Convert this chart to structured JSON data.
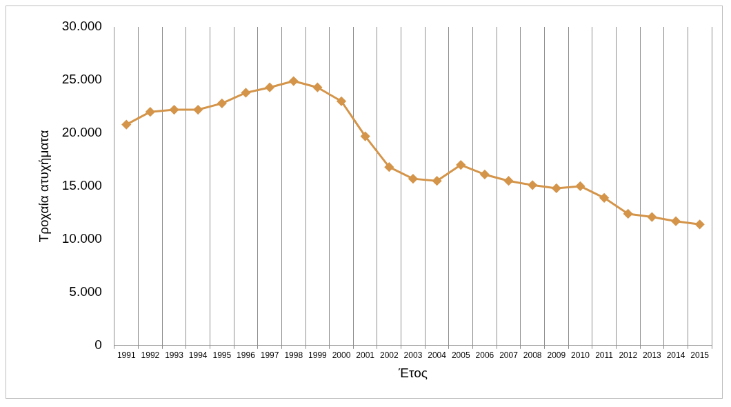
{
  "chart_data": {
    "type": "line",
    "xlabel": "Έτος",
    "ylabel": "Τροχαία ατυχήματα",
    "categories": [
      "1991",
      "1992",
      "1993",
      "1994",
      "1995",
      "1996",
      "1997",
      "1998",
      "1999",
      "2000",
      "2001",
      "2002",
      "2003",
      "2004",
      "2005",
      "2006",
      "2007",
      "2008",
      "2009",
      "2010",
      "2011",
      "2012",
      "2013",
      "2014",
      "2015"
    ],
    "series": [
      {
        "color": "#d4954a",
        "values": [
          20800,
          22000,
          22200,
          22200,
          22800,
          23800,
          24300,
          24900,
          24300,
          23000,
          19700,
          16800,
          15700,
          15500,
          17000,
          16100,
          15500,
          15100,
          14800,
          15000,
          13900,
          12400,
          12100,
          11700,
          11400
        ]
      }
    ],
    "ylim": [
      0,
      30000
    ],
    "yticks": [
      0,
      {
        "value": 5000,
        "label": "5.000"
      },
      {
        "value": 10000,
        "label": "10.000"
      },
      {
        "value": 15000,
        "label": "15.000"
      },
      {
        "value": 20000,
        "label": "20.000"
      },
      {
        "value": 25000,
        "label": "25.000"
      },
      {
        "value": 30000,
        "label": "30.000"
      }
    ],
    "grid": "x",
    "marker": "diamond",
    "line_style": "solid"
  }
}
